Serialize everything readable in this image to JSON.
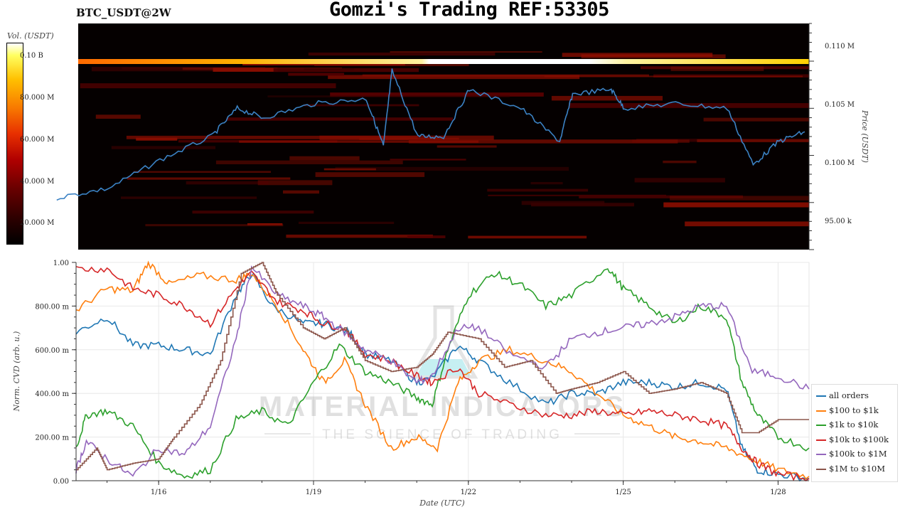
{
  "header": {
    "pair": "BTC_USDT@2W",
    "title": "Gomzi's Trading REF:53305"
  },
  "watermark": {
    "line1": "MATERIAL INDICATORS",
    "line2": "THE SCIENCE OF TRADING"
  },
  "chart_data": [
    {
      "type": "heatmap",
      "overlay": "line",
      "ylabel": "Price (USDT)",
      "ylim": [
        90000,
        114000
      ],
      "y_ticks": [
        {
          "value": 95000,
          "label": "95.00 k"
        },
        {
          "value": 100000,
          "label": "100.00 k"
        },
        {
          "value": 105000,
          "label": "105.00 k"
        },
        {
          "value": 110000,
          "label": "110.00 k"
        }
      ],
      "y_tick_labels_display": [
        "95.00 k",
        "0.100 M",
        "0.105 M",
        "0.110 M"
      ],
      "colorbar": {
        "label": "Vol. (USDT)",
        "ticks": [
          "20.000 M",
          "40.000 M",
          "60.000 M",
          "80.000 M",
          "0.10 B"
        ]
      },
      "price_series": {
        "x": [
          "2025-01-14",
          "2025-01-15",
          "2025-01-16",
          "2025-01-17",
          "2025-01-17T12",
          "2025-01-18",
          "2025-01-19",
          "2025-01-20",
          "2025-01-20T08",
          "2025-01-20T12",
          "2025-01-21",
          "2025-01-21T12",
          "2025-01-22",
          "2025-01-23",
          "2025-01-23T18",
          "2025-01-24",
          "2025-01-24T18",
          "2025-01-25",
          "2025-01-26",
          "2025-01-27",
          "2025-01-27T12",
          "2025-01-28",
          "2025-01-28T12"
        ],
        "y": [
          95500,
          96500,
          99500,
          102000,
          105000,
          104000,
          105500,
          106000,
          101000,
          109000,
          102000,
          102000,
          107000,
          105000,
          101500,
          106500,
          107000,
          105000,
          105500,
          105000,
          99000,
          101500,
          102500
        ]
      }
    },
    {
      "type": "line",
      "xlabel": "Date (UTC)",
      "ylabel": "Norm. CVD (arb. u.)",
      "ylim": [
        0,
        1
      ],
      "y_ticks": [
        "0.00",
        "200.00 m",
        "400.00 m",
        "600.00 m",
        "800.00 m",
        "1.00"
      ],
      "x_ticks": [
        "1/16",
        "1/19",
        "1/22",
        "1/25",
        "1/28"
      ],
      "x_range_days": [
        14.4,
        28.6
      ],
      "legend_position": "bottom-right",
      "series": [
        {
          "name": "all orders",
          "color": "#1f77b4",
          "x": [
            14.4,
            15,
            15.5,
            16,
            16.5,
            17,
            17.5,
            17.8,
            18.2,
            18.8,
            19.2,
            19.7,
            20,
            20.5,
            21,
            21.3,
            21.8,
            22.2,
            22.8,
            23.5,
            24,
            24.5,
            25,
            25.5,
            26,
            26.5,
            27,
            27.3,
            27.6,
            28,
            28.6
          ],
          "y": [
            0.68,
            0.75,
            0.62,
            0.62,
            0.6,
            0.58,
            0.85,
            0.95,
            0.8,
            0.72,
            0.72,
            0.68,
            0.58,
            0.55,
            0.45,
            0.47,
            0.62,
            0.55,
            0.45,
            0.35,
            0.4,
            0.4,
            0.45,
            0.45,
            0.43,
            0.45,
            0.42,
            0.15,
            0.05,
            0.03,
            0.01
          ]
        },
        {
          "name": "$100 to $1k",
          "color": "#ff7f0e",
          "x": [
            14.4,
            15,
            15.5,
            15.8,
            16.2,
            16.8,
            17.5,
            17.8,
            18.3,
            18.8,
            19.2,
            19.6,
            20,
            20.5,
            21,
            21.4,
            21.8,
            22.2,
            22.8,
            23.5,
            24,
            24.5,
            25,
            25.5,
            26,
            26.5,
            27,
            27.5,
            28,
            28.6
          ],
          "y": [
            0.78,
            0.88,
            0.87,
            1.0,
            0.9,
            0.94,
            0.92,
            0.95,
            0.8,
            0.6,
            0.45,
            0.55,
            0.35,
            0.15,
            0.2,
            0.15,
            0.45,
            0.55,
            0.6,
            0.55,
            0.5,
            0.4,
            0.3,
            0.25,
            0.2,
            0.18,
            0.15,
            0.1,
            0.05,
            0.02
          ]
        },
        {
          "name": "$1k to $10k",
          "color": "#2ca02c",
          "x": [
            14.4,
            14.6,
            15,
            15.5,
            16,
            16.5,
            17,
            17.5,
            18,
            18.5,
            19,
            19.5,
            20,
            20.5,
            21,
            21.3,
            21.6,
            22,
            22.5,
            23,
            23.5,
            24,
            24.7,
            25,
            25.5,
            26,
            26.5,
            27,
            27.3,
            27.6,
            28,
            28.6
          ],
          "y": [
            0.15,
            0.3,
            0.32,
            0.25,
            0.08,
            0.02,
            0.05,
            0.28,
            0.32,
            0.25,
            0.45,
            0.62,
            0.5,
            0.45,
            0.38,
            0.35,
            0.6,
            0.85,
            0.95,
            0.9,
            0.8,
            0.85,
            0.98,
            0.88,
            0.8,
            0.72,
            0.8,
            0.75,
            0.45,
            0.3,
            0.2,
            0.15
          ]
        },
        {
          "name": "$10k to $100k",
          "color": "#d62728",
          "x": [
            14.4,
            15,
            15.5,
            16,
            16.5,
            17,
            17.5,
            17.8,
            18.3,
            18.8,
            19.2,
            19.6,
            20,
            20.5,
            21,
            21.3,
            21.8,
            22.2,
            22.8,
            23.5,
            24,
            24.5,
            25,
            25.5,
            26,
            26.5,
            27,
            27.3,
            27.6,
            28,
            28.6
          ],
          "y": [
            0.97,
            0.97,
            0.88,
            0.85,
            0.8,
            0.72,
            0.88,
            0.95,
            0.82,
            0.78,
            0.72,
            0.7,
            0.58,
            0.55,
            0.48,
            0.45,
            0.52,
            0.4,
            0.35,
            0.3,
            0.3,
            0.32,
            0.3,
            0.32,
            0.3,
            0.28,
            0.25,
            0.15,
            0.08,
            0.03,
            0.01
          ]
        },
        {
          "name": "$100k to $1M",
          "color": "#9467bd",
          "x": [
            14.4,
            14.6,
            15,
            15.5,
            16,
            16.5,
            17,
            17.5,
            17.8,
            18.3,
            18.8,
            19.2,
            19.6,
            20,
            20.5,
            21,
            21.3,
            21.8,
            22.2,
            22.8,
            23.5,
            24,
            24.5,
            25,
            25.5,
            26,
            26.5,
            27,
            27.5,
            28,
            28.6
          ],
          "y": [
            0.05,
            0.18,
            0.1,
            0.02,
            0.15,
            0.12,
            0.25,
            0.65,
            0.98,
            0.85,
            0.8,
            0.75,
            0.68,
            0.6,
            0.55,
            0.45,
            0.48,
            0.7,
            0.7,
            0.58,
            0.52,
            0.65,
            0.68,
            0.7,
            0.72,
            0.75,
            0.8,
            0.8,
            0.5,
            0.48,
            0.42
          ]
        },
        {
          "name": "$1M to $10M",
          "color": "#8c564b",
          "x": [
            14.4,
            14.8,
            15,
            15.5,
            16,
            16.3,
            16.8,
            17.2,
            17.6,
            18,
            18.3,
            18.8,
            19.2,
            19.6,
            20,
            20.5,
            21,
            21.3,
            21.6,
            22.2,
            22.7,
            23.2,
            23.7,
            24,
            24.5,
            25,
            25.5,
            26,
            26.5,
            27,
            27.3,
            27.6,
            28,
            28.6
          ],
          "y": [
            0.05,
            0.15,
            0.05,
            0.08,
            0.1,
            0.2,
            0.35,
            0.55,
            0.95,
            1.0,
            0.85,
            0.7,
            0.65,
            0.7,
            0.55,
            0.5,
            0.52,
            0.58,
            0.68,
            0.65,
            0.52,
            0.55,
            0.4,
            0.42,
            0.45,
            0.5,
            0.4,
            0.42,
            0.45,
            0.4,
            0.22,
            0.22,
            0.28,
            0.28
          ]
        }
      ]
    }
  ]
}
